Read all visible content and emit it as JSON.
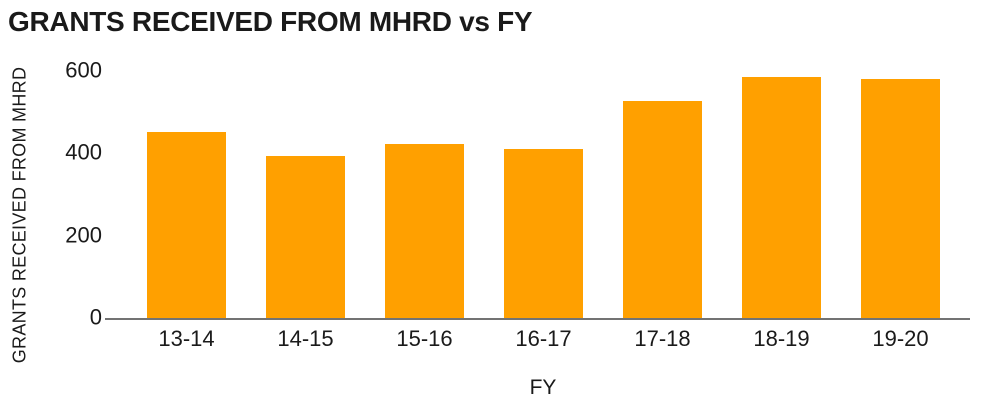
{
  "chart_data": {
    "type": "bar",
    "title": "GRANTS RECEIVED FROM MHRD vs FY",
    "categories": [
      "13-14",
      "14-15",
      "15-16",
      "16-17",
      "17-18",
      "18-19",
      "19-20"
    ],
    "values": [
      450,
      393,
      421,
      409,
      527,
      584,
      580
    ],
    "xlabel": "FY",
    "ylabel": "GRANTS RECEIVED FROM MHRD",
    "ylim": [
      0,
      600
    ],
    "yticks": [
      0,
      200,
      400,
      600
    ],
    "grid": false,
    "legend": false,
    "bar_color": "#FFA000",
    "axis_color": "#737373",
    "text_color": "#1a1a1a",
    "background": "#FFFFFF"
  }
}
